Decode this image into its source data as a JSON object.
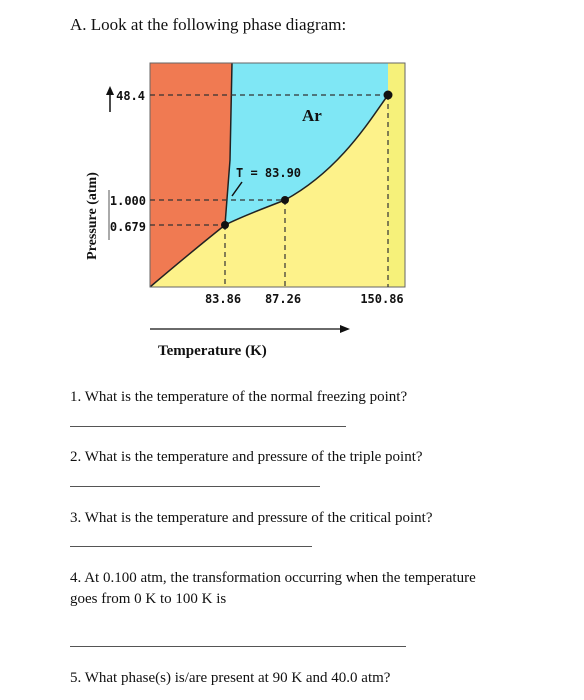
{
  "heading": "A. Look at the following phase diagram:",
  "diagram": {
    "substance_label": "Ar",
    "triple_point_label": "T = 83.90",
    "y_axis_label": "Pressure (atm)",
    "x_axis_label": "Temperature (K)",
    "pressure_ticks": [
      "48.4",
      "1.000",
      "0.679"
    ],
    "temperature_ticks": [
      "83.86",
      "87.26",
      "150.86"
    ],
    "colors": {
      "solid": "#f07a52",
      "liquid": "#7fe7f5",
      "gas": "#fdf28a",
      "right_strip": "#f6f17a",
      "point": "#111111"
    }
  },
  "questions": [
    {
      "number": "1.",
      "text": "What is the temperature of the normal freezing point?"
    },
    {
      "number": "2.",
      "text": "What is the temperature and pressure of the triple point?"
    },
    {
      "number": "3.",
      "text": "What is the temperature and pressure of the critical point?"
    },
    {
      "number": "4.",
      "text": "At 0.100 atm, the transformation occurring when the temperature goes from 0 K to 100 K is"
    },
    {
      "number": "5.",
      "text": "What phase(s) is/are present at 90 K and 40.0 atm?"
    }
  ]
}
